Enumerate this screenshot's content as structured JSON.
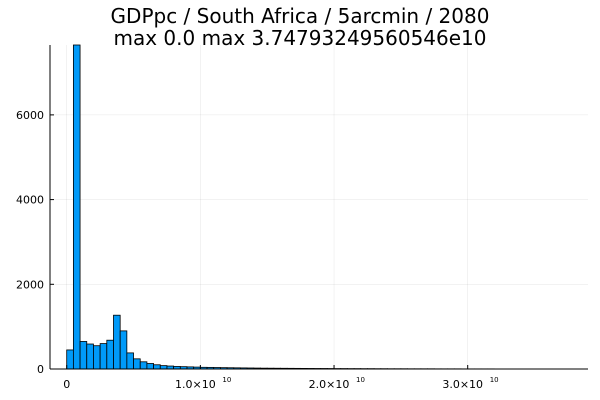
{
  "title_line1": "GDPpc / South Africa / 5arcmin / 2080",
  "title_line2": "max 0.0  max 3.74793249560546e10",
  "chart_data": {
    "type": "bar",
    "title": "GDPpc / South Africa / 5arcmin / 2080",
    "subtitle": "max 0.0  max 3.74793249560546e10",
    "xlabel": "",
    "ylabel": "",
    "xlim": [
      -1250000000.0,
      39000000000.0
    ],
    "ylim": [
      0,
      7650
    ],
    "x_ticks": [
      {
        "value": 0,
        "mantissa": "0",
        "exponent": ""
      },
      {
        "value": 10000000000.0,
        "mantissa": "1.0×10",
        "exponent": "10"
      },
      {
        "value": 20000000000.0,
        "mantissa": "2.0×10",
        "exponent": "10"
      },
      {
        "value": 30000000000.0,
        "mantissa": "3.0×10",
        "exponent": "10"
      }
    ],
    "y_ticks": [
      0,
      2000,
      4000,
      6000
    ],
    "grid": true,
    "legend": "none",
    "bar_color": "#009af9",
    "bin_width": 500000000.0,
    "bin_start": 0,
    "values": [
      450,
      7650,
      650,
      590,
      550,
      600,
      680,
      1270,
      900,
      380,
      240,
      170,
      130,
      100,
      80,
      70,
      60,
      55,
      50,
      45,
      40,
      38,
      35,
      32,
      30,
      28,
      26,
      24,
      22,
      20,
      19,
      18,
      17,
      16,
      15,
      14,
      13,
      12,
      12,
      11,
      10,
      10,
      9,
      9,
      8,
      8,
      7,
      7,
      6,
      6,
      6,
      5,
      5,
      5,
      5,
      4,
      4,
      4,
      4,
      3,
      3,
      3,
      3,
      3,
      2,
      2,
      2,
      2,
      2,
      2,
      2,
      2,
      1,
      1,
      1
    ]
  }
}
